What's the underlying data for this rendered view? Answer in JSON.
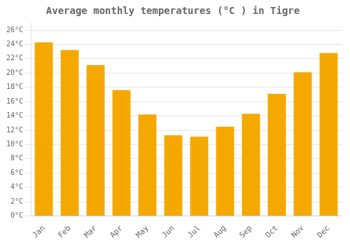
{
  "chart_data": {
    "type": "bar",
    "title": "Average monthly temperatures (°C ) in Tigre",
    "categories": [
      "Jan",
      "Feb",
      "Mar",
      "Apr",
      "May",
      "Jun",
      "Jul",
      "Aug",
      "Sep",
      "Oct",
      "Nov",
      "Dec"
    ],
    "values": [
      24.3,
      23.2,
      21.1,
      17.6,
      14.2,
      11.3,
      11.1,
      12.5,
      14.3,
      17.1,
      20.1,
      22.8
    ],
    "color": "#F5A800",
    "ylim": [
      0,
      27
    ],
    "yticks": [
      {
        "value": 0,
        "label": "0°C"
      },
      {
        "value": 2,
        "label": "2°C"
      },
      {
        "value": 4,
        "label": "4°C"
      },
      {
        "value": 6,
        "label": "6°C"
      },
      {
        "value": 8,
        "label": "8°C"
      },
      {
        "value": 10,
        "label": "10°C"
      },
      {
        "value": 12,
        "label": "12°C"
      },
      {
        "value": 14,
        "label": "14°C"
      },
      {
        "value": 16,
        "label": "16°C"
      },
      {
        "value": 18,
        "label": "18°C"
      },
      {
        "value": 20,
        "label": "20°C"
      },
      {
        "value": 22,
        "label": "22°C"
      },
      {
        "value": 24,
        "label": "24°C"
      },
      {
        "value": 26,
        "label": "26°C"
      }
    ],
    "grid": true
  }
}
